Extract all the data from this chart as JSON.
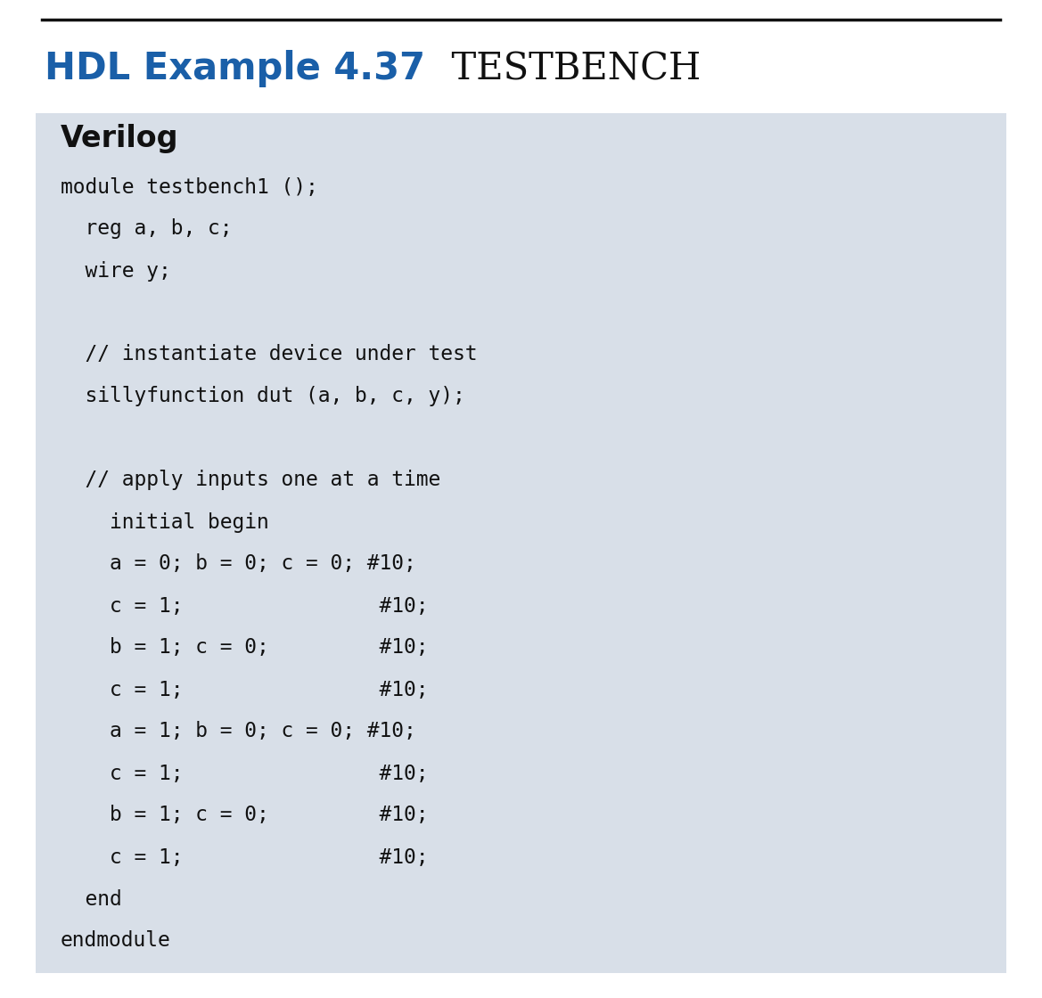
{
  "title_hdl": "HDL Example 4.37",
  "title_main": "  TESTBENCH",
  "title_hdl_color": "#1a5fa8",
  "title_main_color": "#111111",
  "verilog_label": "Verilog",
  "bg_color": "#d8dfe8",
  "white_bg": "#ffffff",
  "top_line_color": "#111111",
  "code_color": "#111111",
  "code_fontsize": 16.5,
  "title_fontsize_hdl": 30,
  "title_fontsize_main": 30,
  "verilog_fontsize": 24,
  "code_lines": [
    "module testbench1 ();",
    "  reg a, b, c;",
    "  wire y;",
    "",
    "  // instantiate device under test",
    "  sillyfunction dut (a, b, c, y);",
    "",
    "  // apply inputs one at a time",
    "    initial begin",
    "    a = 0; b = 0; c = 0; #10;",
    "    c = 1;                #10;",
    "    b = 1; c = 0;         #10;",
    "    c = 1;                #10;",
    "    a = 1; b = 0; c = 0; #10;",
    "    c = 1;                #10;",
    "    b = 1; c = 0;         #10;",
    "    c = 1;                #10;",
    "  end",
    "endmodule"
  ]
}
